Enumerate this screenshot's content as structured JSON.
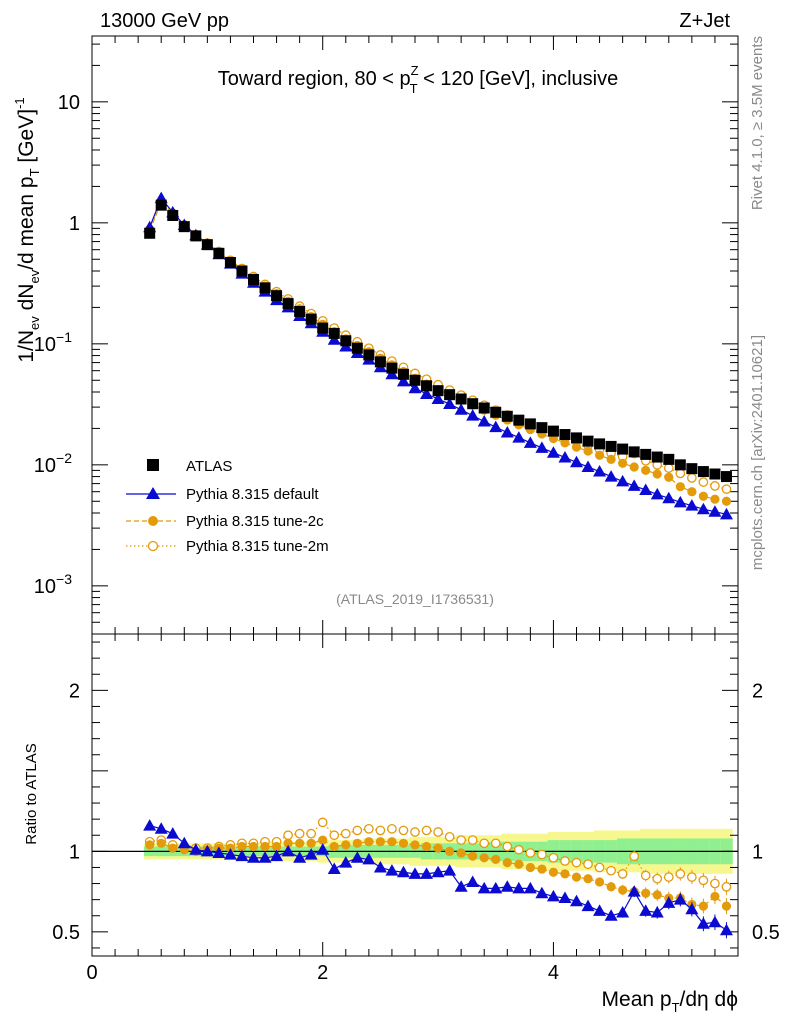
{
  "header": {
    "left": "13000 GeV pp",
    "right": "Z+Jet"
  },
  "side": {
    "top": "Rivet 4.1.0, ≥ 3.5M events",
    "bottom": "mcplots.cern.ch [arXiv:2401.10621]"
  },
  "analysis_tag": "(ATLAS_2019_I1736531)",
  "colors": {
    "atlas": "#000000",
    "default": "#0a0ad0",
    "tune2c": "#e39a0b",
    "tune2m": "#e39a0b",
    "band_inner": "#90f090",
    "band_outer": "#f7f790"
  },
  "chart_data": {
    "type": "scatter",
    "title": "Toward region, 80 < pTZ < 120 [GeV], inclusive",
    "title_parts": {
      "a": "Toward region, 80 < p",
      "sup": "Z",
      "sub": "T",
      "b": " < 120 [GeV], inclusive"
    },
    "xlabel": "Mean pT/dη dφ",
    "xlabel_parts": {
      "a": "Mean p",
      "sub": "T",
      "b": "/dη dϕ"
    },
    "ylabel": "1/Nev dNev/d mean pT [GeV]^-1",
    "ylabel_parts": {
      "a": "1/N",
      "s1": "ev",
      "b": " dN",
      "s2": "ev",
      "c": "/d mean p",
      "s3": "T",
      "d": " [GeV]",
      "sup": "-1"
    },
    "ratio_ylabel": "Ratio to ATLAS",
    "xlim": [
      0,
      5.6
    ],
    "ylim": [
      0.0004,
      35
    ],
    "yscale": "log",
    "ratio_ylim": [
      0.35,
      2.35
    ],
    "x_ticks": [
      0,
      2,
      4
    ],
    "x_tick_labels": [
      "0",
      "2",
      "4"
    ],
    "y_ticks": [
      0.001,
      0.01,
      0.1,
      1,
      10
    ],
    "y_tick_labels": [
      {
        "base": "10",
        "exp": "−3"
      },
      {
        "base": "10",
        "exp": "−2"
      },
      {
        "base": "10",
        "exp": "−1"
      },
      {
        "base": "1",
        "exp": ""
      },
      {
        "base": "10",
        "exp": ""
      }
    ],
    "ratio_ticks": [
      0.5,
      1,
      2
    ],
    "ratio_tick_labels": [
      "0.5",
      "1",
      "2"
    ],
    "legend": [
      {
        "key": "atlas",
        "label": "ATLAS"
      },
      {
        "key": "default",
        "label": "Pythia 8.315 default"
      },
      {
        "key": "tune2c",
        "label": "Pythia 8.315 tune-2c"
      },
      {
        "key": "tune2m",
        "label": "Pythia 8.315 tune-2m"
      }
    ],
    "x": [
      0.5,
      0.6,
      0.7,
      0.8,
      0.9,
      1.0,
      1.1,
      1.2,
      1.3,
      1.4,
      1.5,
      1.6,
      1.7,
      1.8,
      1.9,
      2.0,
      2.1,
      2.2,
      2.3,
      2.4,
      2.5,
      2.6,
      2.7,
      2.8,
      2.9,
      3.0,
      3.1,
      3.2,
      3.3,
      3.4,
      3.5,
      3.6,
      3.7,
      3.8,
      3.9,
      4.0,
      4.1,
      4.2,
      4.3,
      4.4,
      4.5,
      4.6,
      4.7,
      4.8,
      4.9,
      5.0,
      5.1,
      5.2,
      5.3,
      5.4,
      5.5
    ],
    "series": [
      {
        "key": "atlas",
        "name": "ATLAS",
        "values": [
          0.82,
          1.4,
          1.15,
          0.93,
          0.78,
          0.66,
          0.56,
          0.47,
          0.4,
          0.34,
          0.29,
          0.25,
          0.215,
          0.185,
          0.16,
          0.135,
          0.122,
          0.106,
          0.092,
          0.081,
          0.071,
          0.063,
          0.056,
          0.05,
          0.045,
          0.041,
          0.038,
          0.035,
          0.032,
          0.0295,
          0.0272,
          0.0252,
          0.0234,
          0.0218,
          0.0203,
          0.019,
          0.0178,
          0.0167,
          0.0157,
          0.0149,
          0.0142,
          0.0135,
          0.0128,
          0.0122,
          0.0116,
          0.0111,
          0.01,
          0.0093,
          0.0088,
          0.0084,
          0.008
        ]
      },
      {
        "key": "default",
        "name": "Pythia 8.315 default",
        "values": [
          0.92,
          1.6,
          1.22,
          0.96,
          0.79,
          0.66,
          0.55,
          0.46,
          0.38,
          0.32,
          0.27,
          0.23,
          0.2,
          0.17,
          0.148,
          0.126,
          0.108,
          0.095,
          0.084,
          0.074,
          0.064,
          0.056,
          0.049,
          0.043,
          0.0385,
          0.035,
          0.0318,
          0.0285,
          0.0255,
          0.0228,
          0.0205,
          0.0185,
          0.0168,
          0.0152,
          0.0138,
          0.0126,
          0.0115,
          0.0105,
          0.0096,
          0.0088,
          0.008,
          0.0073,
          0.0067,
          0.0062,
          0.0057,
          0.0053,
          0.0049,
          0.0046,
          0.0043,
          0.0041,
          0.0039
        ]
      },
      {
        "key": "tune2c",
        "name": "Pythia 8.315 tune-2c",
        "values": [
          0.86,
          1.47,
          1.18,
          0.94,
          0.79,
          0.67,
          0.57,
          0.48,
          0.41,
          0.35,
          0.3,
          0.26,
          0.225,
          0.195,
          0.168,
          0.145,
          0.126,
          0.11,
          0.097,
          0.086,
          0.076,
          0.067,
          0.059,
          0.052,
          0.0465,
          0.042,
          0.038,
          0.0345,
          0.0312,
          0.0283,
          0.0257,
          0.0235,
          0.0214,
          0.0196,
          0.018,
          0.0165,
          0.0152,
          0.014,
          0.013,
          0.012,
          0.0111,
          0.0103,
          0.0096,
          0.009,
          0.0084,
          0.0079,
          0.0066,
          0.006,
          0.0055,
          0.0052,
          0.005
        ]
      },
      {
        "key": "tune2m",
        "name": "Pythia 8.315 tune-2m",
        "values": [
          0.88,
          1.5,
          1.2,
          0.96,
          0.8,
          0.68,
          0.58,
          0.49,
          0.42,
          0.36,
          0.31,
          0.27,
          0.235,
          0.205,
          0.178,
          0.155,
          0.135,
          0.118,
          0.104,
          0.092,
          0.081,
          0.072,
          0.064,
          0.057,
          0.051,
          0.046,
          0.0415,
          0.0377,
          0.0342,
          0.0311,
          0.0283,
          0.0258,
          0.0236,
          0.0216,
          0.0199,
          0.0183,
          0.0168,
          0.0156,
          0.0145,
          0.0134,
          0.0125,
          0.0117,
          0.0124,
          0.0108,
          0.01,
          0.0094,
          0.0085,
          0.0078,
          0.0072,
          0.0067,
          0.0063
        ]
      }
    ],
    "ratio_series": [
      {
        "key": "default",
        "values": [
          1.16,
          1.14,
          1.11,
          1.05,
          1.01,
          1.0,
          0.99,
          0.98,
          0.97,
          0.96,
          0.96,
          0.97,
          1.0,
          0.96,
          0.98,
          1.01,
          0.89,
          0.93,
          0.96,
          0.95,
          0.9,
          0.88,
          0.87,
          0.86,
          0.86,
          0.87,
          0.88,
          0.78,
          0.81,
          0.77,
          0.77,
          0.78,
          0.77,
          0.77,
          0.74,
          0.72,
          0.71,
          0.69,
          0.66,
          0.63,
          0.6,
          0.62,
          0.75,
          0.63,
          0.62,
          0.68,
          0.7,
          0.64,
          0.55,
          0.56,
          0.51
        ]
      },
      {
        "key": "tune2c",
        "values": [
          1.04,
          1.05,
          1.02,
          1.01,
          1.0,
          1.01,
          1.02,
          1.02,
          1.03,
          1.03,
          1.03,
          1.03,
          1.05,
          1.05,
          1.05,
          1.07,
          1.03,
          1.04,
          1.05,
          1.06,
          1.06,
          1.06,
          1.05,
          1.04,
          1.03,
          1.02,
          1.0,
          0.99,
          0.97,
          0.96,
          0.95,
          0.93,
          0.92,
          0.9,
          0.89,
          0.87,
          0.86,
          0.84,
          0.83,
          0.81,
          0.78,
          0.76,
          0.75,
          0.74,
          0.73,
          0.71,
          0.71,
          0.67,
          0.66,
          0.72,
          0.66
        ]
      },
      {
        "key": "tune2m",
        "values": [
          1.06,
          1.07,
          1.04,
          1.03,
          1.02,
          1.02,
          1.03,
          1.04,
          1.05,
          1.05,
          1.06,
          1.06,
          1.1,
          1.11,
          1.11,
          1.18,
          1.1,
          1.11,
          1.13,
          1.14,
          1.13,
          1.14,
          1.13,
          1.12,
          1.13,
          1.12,
          1.09,
          1.07,
          1.07,
          1.05,
          1.05,
          1.03,
          1.01,
          0.99,
          0.98,
          0.96,
          0.94,
          0.93,
          0.92,
          0.9,
          0.88,
          0.86,
          0.97,
          0.85,
          0.83,
          0.84,
          0.86,
          0.84,
          0.82,
          0.8,
          0.78
        ]
      }
    ],
    "band_outer": [
      0.05,
      0.05,
      0.05,
      0.05,
      0.05,
      0.05,
      0.05,
      0.05,
      0.05,
      0.05,
      0.06,
      0.06,
      0.06,
      0.06,
      0.06,
      0.07,
      0.07,
      0.07,
      0.07,
      0.08,
      0.08,
      0.08,
      0.08,
      0.09,
      0.09,
      0.09,
      0.09,
      0.1,
      0.1,
      0.1,
      0.1,
      0.11,
      0.11,
      0.11,
      0.11,
      0.12,
      0.12,
      0.12,
      0.12,
      0.13,
      0.13,
      0.13,
      0.13,
      0.14,
      0.14,
      0.14,
      0.14,
      0.14,
      0.14,
      0.14,
      0.14
    ],
    "band_inner": [
      0.03,
      0.03,
      0.03,
      0.03,
      0.03,
      0.03,
      0.03,
      0.03,
      0.03,
      0.03,
      0.03,
      0.03,
      0.03,
      0.03,
      0.03,
      0.03,
      0.04,
      0.04,
      0.04,
      0.04,
      0.04,
      0.04,
      0.04,
      0.04,
      0.05,
      0.05,
      0.05,
      0.05,
      0.05,
      0.05,
      0.06,
      0.06,
      0.06,
      0.06,
      0.06,
      0.07,
      0.07,
      0.07,
      0.07,
      0.07,
      0.07,
      0.08,
      0.08,
      0.08,
      0.08,
      0.08,
      0.08,
      0.08,
      0.08,
      0.08,
      0.08
    ]
  }
}
